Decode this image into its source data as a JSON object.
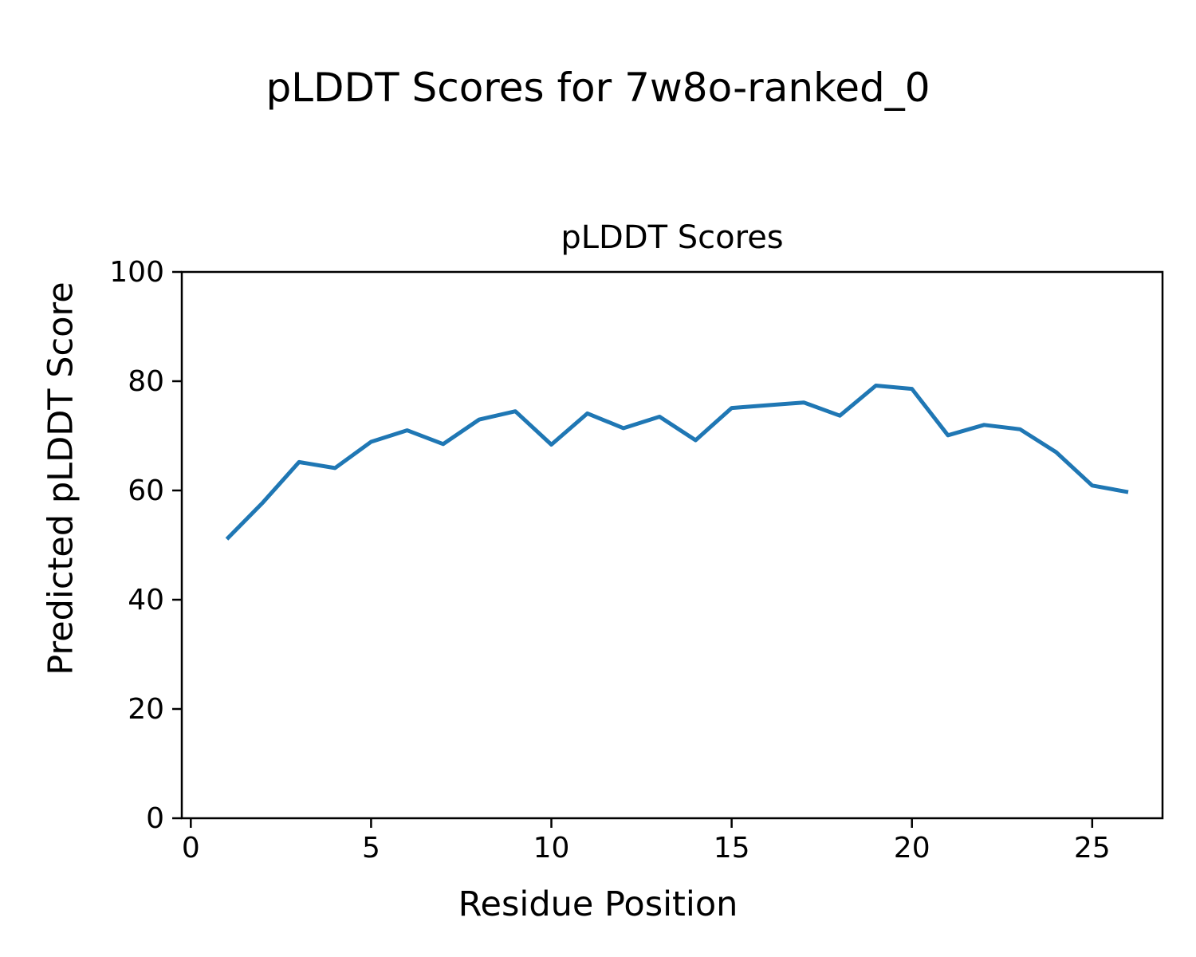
{
  "figure": {
    "suptitle": "pLDDT Scores for 7w8o-ranked_0",
    "background_color": "#ffffff",
    "text_color": "#000000"
  },
  "chart_data": {
    "type": "line",
    "title": "pLDDT Scores",
    "xlabel": "Residue Position",
    "ylabel": "Predicted pLDDT Score",
    "series": [
      {
        "name": "pLDDT",
        "x": [
          1,
          2,
          3,
          4,
          5,
          6,
          7,
          8,
          9,
          10,
          11,
          12,
          13,
          14,
          15,
          16,
          17,
          18,
          19,
          20,
          21,
          22,
          23,
          24,
          25,
          26
        ],
        "y": [
          51.1,
          57.8,
          65.2,
          64.1,
          68.9,
          71.0,
          68.5,
          73.0,
          74.5,
          68.4,
          74.1,
          71.4,
          73.5,
          69.2,
          75.1,
          75.6,
          76.1,
          73.7,
          79.2,
          78.6,
          70.1,
          72.0,
          71.2,
          67.0,
          60.9,
          59.7
        ],
        "color": "#1f77b4"
      }
    ],
    "xlim": [
      -0.25,
      26.95
    ],
    "ylim": [
      0,
      100
    ],
    "xticks": [
      0,
      5,
      10,
      15,
      20,
      25
    ],
    "yticks": [
      0,
      20,
      40,
      60,
      80,
      100
    ],
    "grid": false,
    "legend": null,
    "spine_color": "#000000"
  }
}
